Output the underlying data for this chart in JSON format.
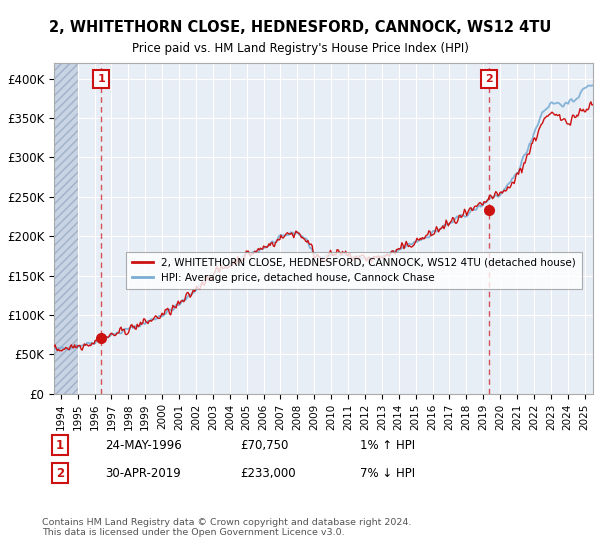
{
  "title": "2, WHITETHORN CLOSE, HEDNESFORD, CANNOCK, WS12 4TU",
  "subtitle": "Price paid vs. HM Land Registry's House Price Index (HPI)",
  "yticks": [
    0,
    50000,
    100000,
    150000,
    200000,
    250000,
    300000,
    350000,
    400000
  ],
  "ytick_labels": [
    "£0",
    "£50K",
    "£100K",
    "£150K",
    "£200K",
    "£250K",
    "£300K",
    "£350K",
    "£400K"
  ],
  "xlim_start": 1993.6,
  "xlim_end": 2025.5,
  "ylim": [
    0,
    420000
  ],
  "hpi_color": "#7aadd4",
  "price_color": "#cc1111",
  "marker1_date": 1996.39,
  "marker1_value": 70750,
  "marker1_label": "1",
  "marker2_date": 2019.33,
  "marker2_value": 233000,
  "marker2_label": "2",
  "legend_line1": "2, WHITETHORN CLOSE, HEDNESFORD, CANNOCK, WS12 4TU (detached house)",
  "legend_line2": "HPI: Average price, detached house, Cannock Chase",
  "annotation1_date": "24-MAY-1996",
  "annotation1_price": "£70,750",
  "annotation1_hpi": "1% ↑ HPI",
  "annotation2_date": "30-APR-2019",
  "annotation2_price": "£233,000",
  "annotation2_hpi": "7% ↓ HPI",
  "copyright": "Contains HM Land Registry data © Crown copyright and database right 2024.\nThis data is licensed under the Open Government Licence v3.0.",
  "plot_bg_color": "#e8eef6",
  "hatch_color": "#c8d4e4",
  "grid_color": "#ffffff",
  "figsize": [
    6.0,
    5.6
  ],
  "dpi": 100
}
